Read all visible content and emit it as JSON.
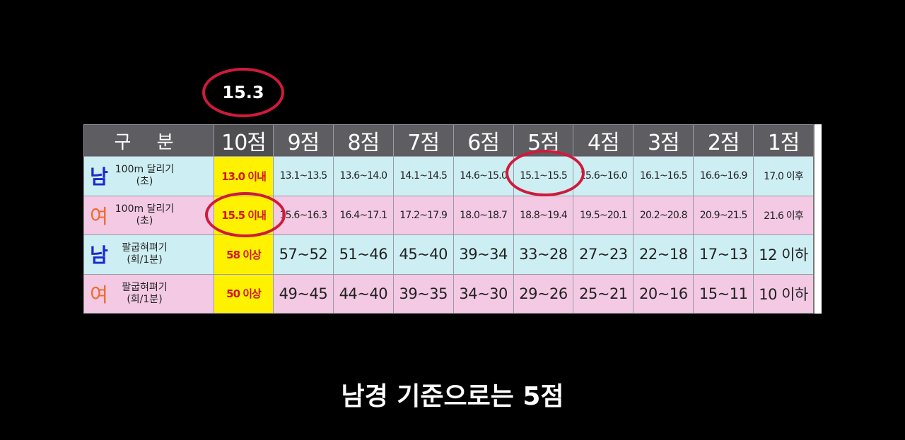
{
  "annotation_value": "15.3",
  "caption": "남경 기준으로는 5점",
  "table": {
    "headers": [
      "구 분",
      "10점",
      "9점",
      "8점",
      "7점",
      "6점",
      "5점",
      "4점",
      "3점",
      "2점",
      "1점"
    ],
    "rows": [
      {
        "sex": "남",
        "event": "100m 달리기",
        "unit": "(초)",
        "cells": [
          "13.0 이내",
          "13.1~13.5",
          "13.6~14.0",
          "14.1~14.5",
          "14.6~15.0",
          "15.1~15.5",
          "15.6~16.0",
          "16.1~16.5",
          "16.6~16.9",
          "17.0 이후"
        ]
      },
      {
        "sex": "여",
        "event": "100m 달리기",
        "unit": "(초)",
        "cells": [
          "15.5 이내",
          "15.6~16.3",
          "16.4~17.1",
          "17.2~17.9",
          "18.0~18.7",
          "18.8~19.4",
          "19.5~20.1",
          "20.2~20.8",
          "20.9~21.5",
          "21.6 이후"
        ]
      },
      {
        "sex": "남",
        "event": "팔굽혀펴기",
        "unit": "(회/1분)",
        "cells": [
          "58 이상",
          "57~52",
          "51~46",
          "45~40",
          "39~34",
          "33~28",
          "27~23",
          "22~18",
          "17~13",
          "12 이하"
        ]
      },
      {
        "sex": "여",
        "event": "팔굽혀펴기",
        "unit": "(회/1분)",
        "cells": [
          "50 이상",
          "49~45",
          "44~40",
          "39~35",
          "34~30",
          "29~26",
          "25~21",
          "20~16",
          "15~11",
          "10 이하"
        ]
      }
    ]
  },
  "colors": {
    "male_row": "#cdeef2",
    "female_row": "#f3c9e4",
    "highlight_col": "#fff200",
    "circle": "#d01a3c",
    "header": "#5e5e62"
  }
}
